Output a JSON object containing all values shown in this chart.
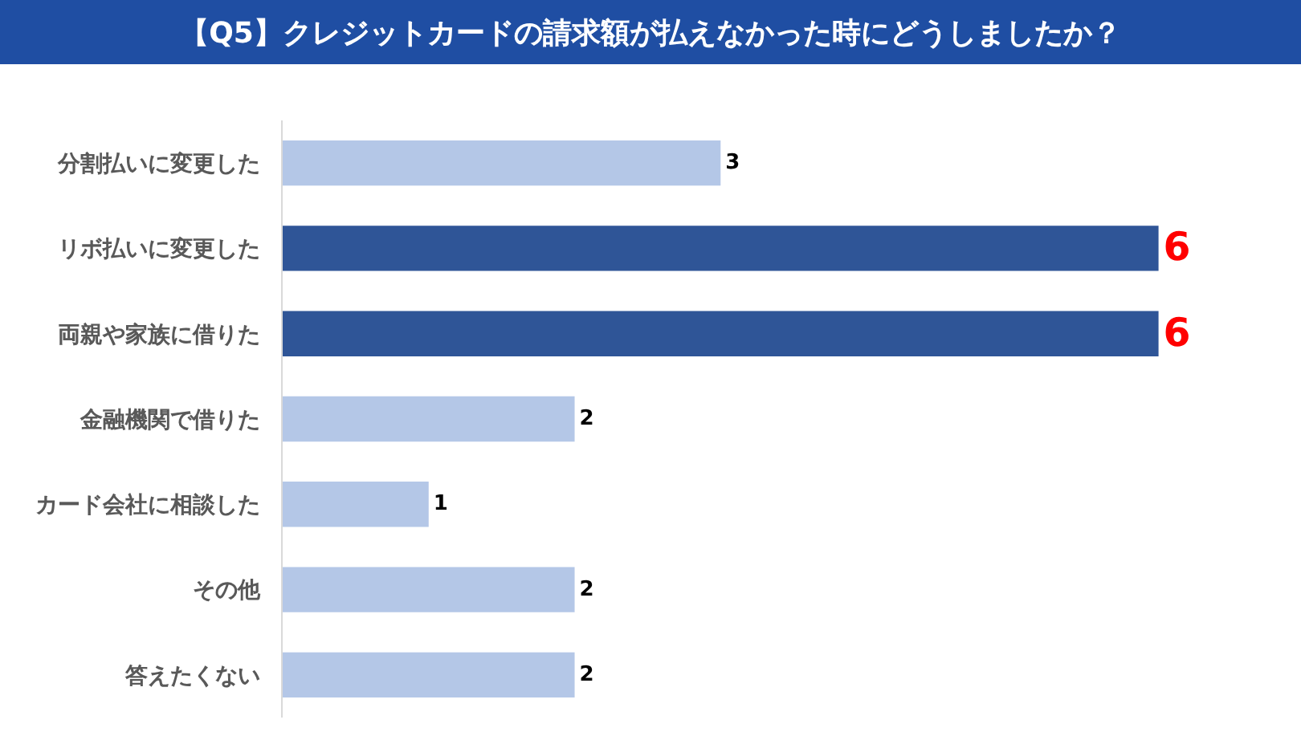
{
  "chart_data": {
    "type": "bar",
    "orientation": "horizontal",
    "title": "【Q5】クレジットカードの請求額が払えなかった時にどうしましたか？",
    "categories": [
      "分割払いに変更した",
      "リボ払いに変更した",
      "両親や家族に借りた",
      "金融機関で借りた",
      "カード会社に相談した",
      "その他",
      "答えたくない"
    ],
    "values": [
      3,
      6,
      6,
      2,
      1,
      2,
      2
    ],
    "colors": [
      "#b4c7e7",
      "#2f5597",
      "#2f5597",
      "#b4c7e7",
      "#b4c7e7",
      "#b4c7e7",
      "#b4c7e7"
    ],
    "data_labels": true,
    "tick_labels": "y"
  }
}
